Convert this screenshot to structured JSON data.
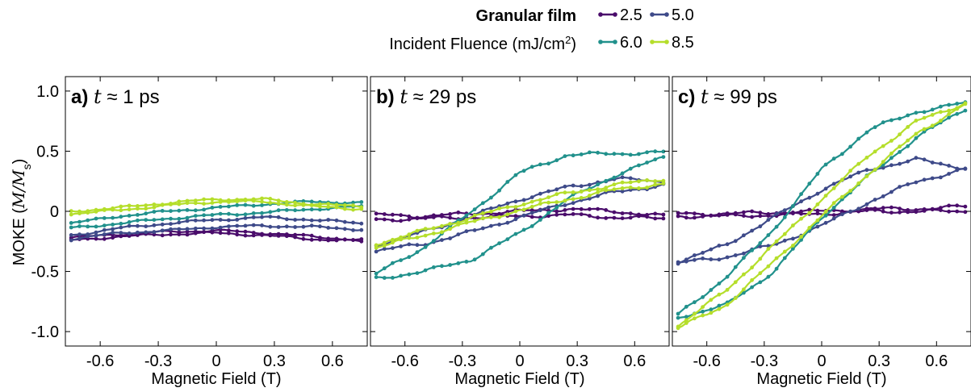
{
  "legend": {
    "title": "Granular film",
    "subtitle_prefix": "Incident Fluence (mJ/cm",
    "subtitle_sup": "2",
    "subtitle_suffix": ")",
    "entries": [
      "2.5",
      "5.0",
      "6.0",
      "8.5"
    ]
  },
  "y_axis": {
    "label_prefix": "MOKE (",
    "label_math": "M/M",
    "label_sub": "s",
    "label_suffix": ")",
    "tick_labels": [
      "1.0",
      "0.5",
      "0",
      "-0.5",
      "-1.0"
    ]
  },
  "x_axis": {
    "label": "Magnetic Field (T)",
    "tick_labels": [
      "-0.6",
      "-0.3",
      "0",
      "0.3",
      "0.6"
    ]
  },
  "panels": [
    {
      "tag": "a)",
      "var": "t",
      "approx": "≈",
      "value": "1",
      "unit": "ps"
    },
    {
      "tag": "b)",
      "var": "t",
      "approx": "≈",
      "value": "29",
      "unit": "ps"
    },
    {
      "tag": "c)",
      "var": "t",
      "approx": "≈",
      "value": "99",
      "unit": "ps"
    }
  ],
  "colors": {
    "2.5": "#4a0c6b",
    "5.0": "#3e4a89",
    "6.0": "#21918c",
    "8.5": "#b5de2b"
  },
  "chart_data": [
    {
      "type": "line",
      "panel": "a",
      "xlabel": "Magnetic Field (T)",
      "ylabel": "MOKE (M/Ms)",
      "xlim": [
        -0.78,
        0.78
      ],
      "ylim": [
        -1.12,
        1.12
      ],
      "xticks": [
        -0.6,
        -0.3,
        0,
        0.3,
        0.6
      ],
      "yticks": [
        -1.0,
        -0.5,
        0,
        0.5,
        1.0
      ],
      "series": [
        {
          "name": "2.5",
          "upper": [
            [
              -0.75,
              -0.22
            ],
            [
              -0.5,
              -0.19
            ],
            [
              -0.25,
              -0.17
            ],
            [
              0,
              -0.16
            ],
            [
              0.25,
              -0.18
            ],
            [
              0.5,
              -0.21
            ],
            [
              0.75,
              -0.24
            ]
          ],
          "lower": [
            [
              -0.75,
              -0.24
            ],
            [
              -0.5,
              -0.21
            ],
            [
              -0.25,
              -0.19
            ],
            [
              0,
              -0.18
            ],
            [
              0.25,
              -0.2
            ],
            [
              0.5,
              -0.23
            ],
            [
              0.75,
              -0.25
            ]
          ]
        },
        {
          "name": "5.0",
          "upper": [
            [
              -0.75,
              -0.2
            ],
            [
              -0.5,
              -0.14
            ],
            [
              -0.25,
              -0.1
            ],
            [
              0,
              -0.07
            ],
            [
              0.25,
              -0.05
            ],
            [
              0.5,
              -0.07
            ],
            [
              0.75,
              -0.1
            ]
          ],
          "lower": [
            [
              -0.75,
              -0.23
            ],
            [
              -0.5,
              -0.18
            ],
            [
              -0.25,
              -0.16
            ],
            [
              0,
              -0.13
            ],
            [
              0.25,
              -0.12
            ],
            [
              0.5,
              -0.13
            ],
            [
              0.75,
              -0.15
            ]
          ]
        },
        {
          "name": "6.0",
          "upper": [
            [
              -0.75,
              -0.1
            ],
            [
              -0.5,
              -0.04
            ],
            [
              -0.25,
              0.0
            ],
            [
              0,
              0.03
            ],
            [
              0.25,
              0.06
            ],
            [
              0.5,
              0.08
            ],
            [
              0.75,
              0.07
            ]
          ],
          "lower": [
            [
              -0.75,
              -0.14
            ],
            [
              -0.5,
              -0.1
            ],
            [
              -0.25,
              -0.06
            ],
            [
              0,
              -0.03
            ],
            [
              0.25,
              -0.01
            ],
            [
              0.5,
              0.02
            ],
            [
              0.75,
              0.04
            ]
          ]
        },
        {
          "name": "8.5",
          "upper": [
            [
              -0.75,
              0.0
            ],
            [
              -0.5,
              0.03
            ],
            [
              -0.25,
              0.07
            ],
            [
              0,
              0.1
            ],
            [
              0.25,
              0.1
            ],
            [
              0.5,
              0.06
            ],
            [
              0.75,
              0.04
            ]
          ],
          "lower": [
            [
              -0.75,
              -0.02
            ],
            [
              -0.5,
              0.01
            ],
            [
              -0.25,
              0.05
            ],
            [
              0,
              0.08
            ],
            [
              0.25,
              0.08
            ],
            [
              0.5,
              0.04
            ],
            [
              0.75,
              0.02
            ]
          ]
        }
      ]
    },
    {
      "type": "line",
      "panel": "b",
      "xlabel": "Magnetic Field (T)",
      "ylabel": "",
      "xlim": [
        -0.78,
        0.78
      ],
      "ylim": [
        -1.12,
        1.12
      ],
      "xticks": [
        -0.6,
        -0.3,
        0,
        0.3,
        0.6
      ],
      "yticks": [
        -1.0,
        -0.5,
        0,
        0.5,
        1.0
      ],
      "series": [
        {
          "name": "2.5",
          "upper": [
            [
              -0.75,
              -0.03
            ],
            [
              -0.5,
              -0.04
            ],
            [
              -0.25,
              -0.02
            ],
            [
              0,
              0.0
            ],
            [
              0.25,
              0.02
            ],
            [
              0.5,
              0.0
            ],
            [
              0.75,
              -0.04
            ]
          ],
          "lower": [
            [
              -0.75,
              -0.07
            ],
            [
              -0.5,
              -0.06
            ],
            [
              -0.25,
              -0.05
            ],
            [
              0,
              -0.04
            ],
            [
              0.25,
              -0.03
            ],
            [
              0.5,
              -0.05
            ],
            [
              0.75,
              -0.06
            ]
          ]
        },
        {
          "name": "5.0",
          "upper": [
            [
              -0.75,
              -0.28
            ],
            [
              -0.5,
              -0.17
            ],
            [
              -0.25,
              -0.04
            ],
            [
              0,
              0.1
            ],
            [
              0.25,
              0.2
            ],
            [
              0.5,
              0.27
            ],
            [
              0.75,
              0.25
            ]
          ],
          "lower": [
            [
              -0.75,
              -0.33
            ],
            [
              -0.5,
              -0.27
            ],
            [
              -0.25,
              -0.17
            ],
            [
              0,
              -0.05
            ],
            [
              0.25,
              0.07
            ],
            [
              0.5,
              0.16
            ],
            [
              0.75,
              0.22
            ]
          ]
        },
        {
          "name": "6.0",
          "upper": [
            [
              -0.75,
              -0.52
            ],
            [
              -0.5,
              -0.3
            ],
            [
              -0.25,
              0.0
            ],
            [
              0,
              0.32
            ],
            [
              0.25,
              0.47
            ],
            [
              0.5,
              0.48
            ],
            [
              0.75,
              0.49
            ]
          ],
          "lower": [
            [
              -0.75,
              -0.56
            ],
            [
              -0.5,
              -0.5
            ],
            [
              -0.25,
              -0.4
            ],
            [
              0,
              -0.18
            ],
            [
              0.25,
              0.1
            ],
            [
              0.5,
              0.3
            ],
            [
              0.75,
              0.45
            ]
          ]
        },
        {
          "name": "8.5",
          "upper": [
            [
              -0.75,
              -0.27
            ],
            [
              -0.5,
              -0.16
            ],
            [
              -0.25,
              -0.05
            ],
            [
              0,
              0.06
            ],
            [
              0.25,
              0.15
            ],
            [
              0.5,
              0.22
            ],
            [
              0.75,
              0.27
            ]
          ],
          "lower": [
            [
              -0.75,
              -0.3
            ],
            [
              -0.5,
              -0.2
            ],
            [
              -0.25,
              -0.09
            ],
            [
              0,
              0.01
            ],
            [
              0.25,
              0.1
            ],
            [
              0.5,
              0.18
            ],
            [
              0.75,
              0.23
            ]
          ]
        }
      ]
    },
    {
      "type": "line",
      "panel": "c",
      "xlabel": "Magnetic Field (T)",
      "ylabel": "",
      "xlim": [
        -0.78,
        0.78
      ],
      "ylim": [
        -1.12,
        1.12
      ],
      "xticks": [
        -0.6,
        -0.3,
        0,
        0.3,
        0.6
      ],
      "yticks": [
        -1.0,
        -0.5,
        0,
        0.5,
        1.0
      ],
      "series": [
        {
          "name": "2.5",
          "upper": [
            [
              -0.75,
              -0.02
            ],
            [
              -0.5,
              -0.02
            ],
            [
              -0.25,
              -0.01
            ],
            [
              0,
              0.0
            ],
            [
              0.25,
              0.02
            ],
            [
              0.5,
              0.02
            ],
            [
              0.75,
              0.04
            ]
          ],
          "lower": [
            [
              -0.75,
              -0.04
            ],
            [
              -0.5,
              -0.04
            ],
            [
              -0.25,
              -0.03
            ],
            [
              0,
              -0.02
            ],
            [
              0.25,
              0.0
            ],
            [
              0.5,
              0.0
            ],
            [
              0.75,
              0.0
            ]
          ]
        },
        {
          "name": "5.0",
          "upper": [
            [
              -0.75,
              -0.42
            ],
            [
              -0.5,
              -0.28
            ],
            [
              -0.25,
              -0.05
            ],
            [
              0,
              0.18
            ],
            [
              0.25,
              0.35
            ],
            [
              0.5,
              0.43
            ],
            [
              0.75,
              0.36
            ]
          ],
          "lower": [
            [
              -0.75,
              -0.43
            ],
            [
              -0.5,
              -0.38
            ],
            [
              -0.25,
              -0.28
            ],
            [
              0,
              -0.12
            ],
            [
              0.25,
              0.08
            ],
            [
              0.5,
              0.25
            ],
            [
              0.75,
              0.35
            ]
          ]
        },
        {
          "name": "6.0",
          "upper": [
            [
              -0.75,
              -0.86
            ],
            [
              -0.5,
              -0.55
            ],
            [
              -0.25,
              -0.15
            ],
            [
              0,
              0.35
            ],
            [
              0.25,
              0.68
            ],
            [
              0.5,
              0.83
            ],
            [
              0.75,
              0.9
            ]
          ],
          "lower": [
            [
              -0.75,
              -0.88
            ],
            [
              -0.5,
              -0.78
            ],
            [
              -0.25,
              -0.5
            ],
            [
              0,
              -0.05
            ],
            [
              0.25,
              0.3
            ],
            [
              0.5,
              0.62
            ],
            [
              0.75,
              0.85
            ]
          ]
        },
        {
          "name": "8.5",
          "upper": [
            [
              -0.75,
              -0.95
            ],
            [
              -0.5,
              -0.66
            ],
            [
              -0.25,
              -0.28
            ],
            [
              0,
              0.1
            ],
            [
              0.25,
              0.47
            ],
            [
              0.5,
              0.75
            ],
            [
              0.75,
              0.9
            ]
          ],
          "lower": [
            [
              -0.75,
              -0.97
            ],
            [
              -0.5,
              -0.78
            ],
            [
              -0.25,
              -0.42
            ],
            [
              0,
              -0.04
            ],
            [
              0.25,
              0.32
            ],
            [
              0.5,
              0.65
            ],
            [
              0.75,
              0.89
            ]
          ]
        }
      ]
    }
  ]
}
